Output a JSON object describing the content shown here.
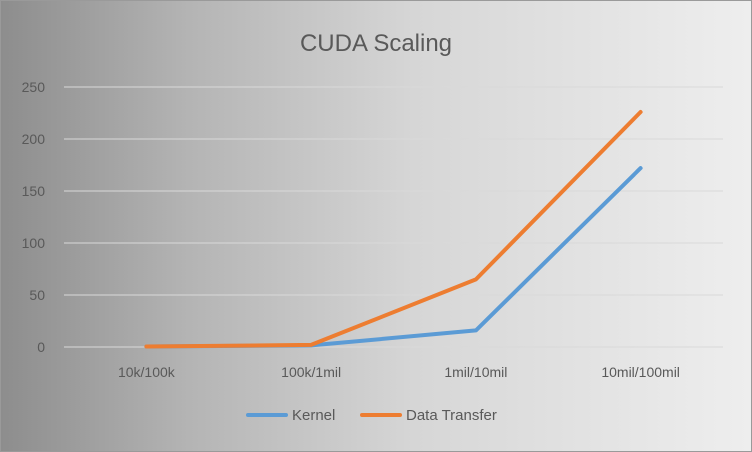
{
  "chart_data": {
    "type": "line",
    "title": "CUDA Scaling",
    "xlabel": "",
    "ylabel": "",
    "categories": [
      "10k/100k",
      "100k/1mil",
      "1mil/10mil",
      "10mil/100mil"
    ],
    "ylim": [
      0,
      250
    ],
    "yticks": [
      0,
      50,
      100,
      150,
      200,
      250
    ],
    "grid": true,
    "legend_position": "bottom",
    "series": [
      {
        "name": "Kernel",
        "color": "#5b9bd5",
        "values": [
          0.5,
          1.5,
          16,
          172
        ]
      },
      {
        "name": "Data Transfer",
        "color": "#ed7d31",
        "values": [
          0.5,
          2,
          65,
          226
        ]
      }
    ]
  }
}
